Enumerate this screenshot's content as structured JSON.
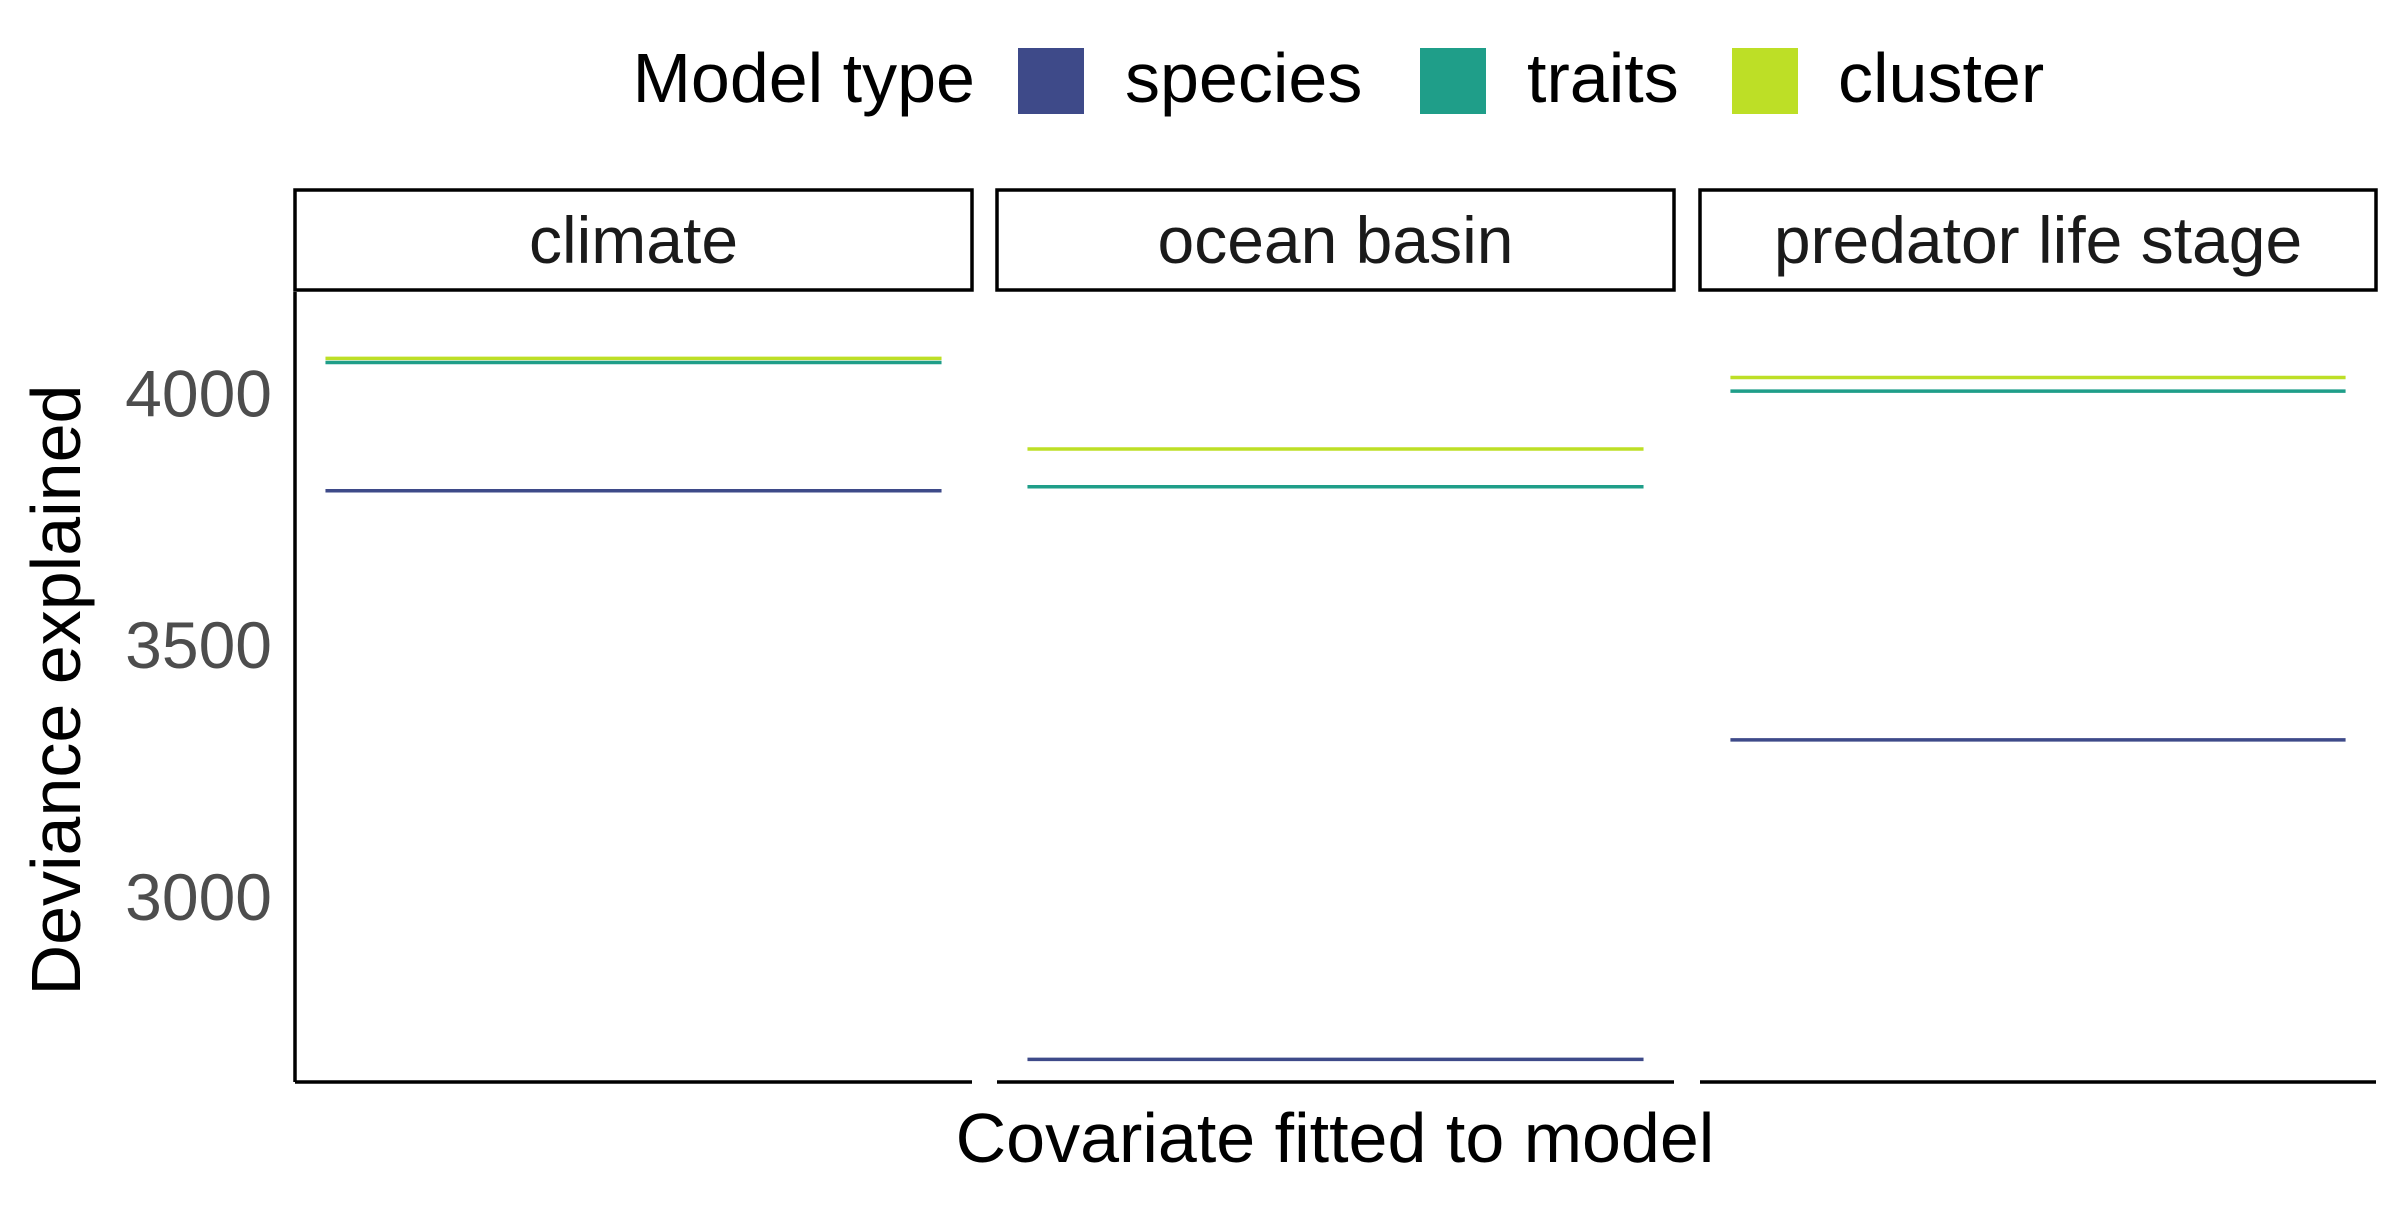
{
  "chart_data": {
    "type": "line",
    "facet_type": "horizontal reference lines per panel",
    "legend": {
      "title": "Model type",
      "position": "top",
      "entries": [
        {
          "name": "species",
          "color": "#3e4a89"
        },
        {
          "name": "traits",
          "color": "#1f9e89"
        },
        {
          "name": "cluster",
          "color": "#bddf26"
        }
      ]
    },
    "xlabel": "Covariate fitted to model",
    "ylabel": "Deviance explained",
    "ylim": [
      2630,
      4200
    ],
    "yticks": [
      3000,
      3500,
      4000
    ],
    "grid": false,
    "panels": [
      {
        "title": "climate",
        "series": [
          {
            "name": "species",
            "value": 3805
          },
          {
            "name": "traits",
            "value": 4060
          },
          {
            "name": "cluster",
            "value": 4068
          }
        ]
      },
      {
        "title": "ocean basin",
        "series": [
          {
            "name": "species",
            "value": 2675
          },
          {
            "name": "traits",
            "value": 3813
          },
          {
            "name": "cluster",
            "value": 3888
          }
        ]
      },
      {
        "title": "predator life stage",
        "series": [
          {
            "name": "species",
            "value": 3310
          },
          {
            "name": "traits",
            "value": 4003
          },
          {
            "name": "cluster",
            "value": 4030
          }
        ]
      }
    ]
  }
}
